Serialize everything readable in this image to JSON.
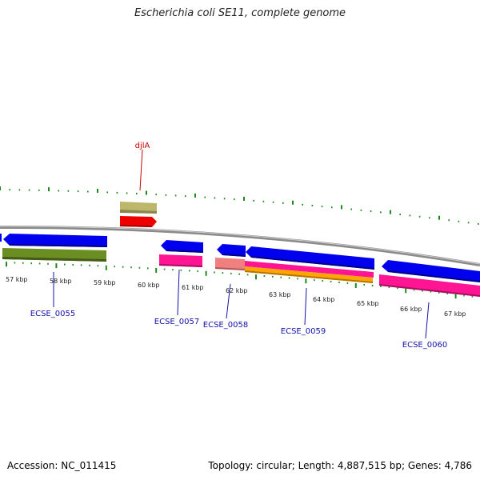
{
  "title": "Escherichia coli SE11, complete genome",
  "footer": {
    "accession": "Accession: NC_011415",
    "summary": "Topology: circular; Length: 4,887,515 bp; Genes: 4,786"
  },
  "colors": {
    "tick": "#1a8a1a",
    "backbone": "#8a8a8a",
    "blue": "#0000ee",
    "magenta": "#ff1493",
    "olive": "#6b8e23",
    "khaki": "#bdb76b",
    "red": "#ee0000",
    "salmon": "#f08080",
    "orange": "#ffa500",
    "label_blue": "#1111aa",
    "label_red": "#cc0000"
  },
  "kbp_labels": [
    "57 kbp",
    "58 kbp",
    "59 kbp",
    "60 kbp",
    "61 kbp",
    "62 kbp",
    "63 kbp",
    "64 kbp",
    "65 kbp",
    "66 kbp",
    "67 kbp"
  ],
  "gene_labels": [
    {
      "id": "djlA",
      "color": "red"
    },
    {
      "id": "ECSE_0055",
      "color": "blue"
    },
    {
      "id": "ECSE_0057",
      "color": "blue"
    },
    {
      "id": "ECSE_0058",
      "color": "blue"
    },
    {
      "id": "ECSE_0059",
      "color": "blue"
    },
    {
      "id": "ECSE_0060",
      "color": "blue"
    }
  ]
}
